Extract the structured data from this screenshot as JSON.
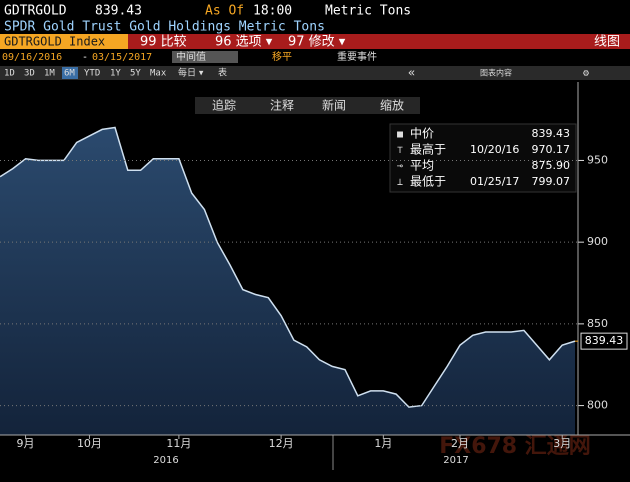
{
  "header": {
    "ticker": "GDTRGOLD",
    "price": "839.43",
    "as_of": "As Of",
    "time": "18:00",
    "unit": "Metric Tons",
    "description": "SPDR Gold Trust Gold Holdings Metric Tons",
    "security": "GDTRGOLD Index",
    "menu": [
      "99 比较",
      "96 选项 ▾",
      "97 修改 ▾"
    ],
    "chart_kind": "线图",
    "start_date": "09/16/2016",
    "date_sep": "-",
    "end_date": "03/15/2017",
    "mode": "中间值",
    "options": [
      "移平",
      "重要事件"
    ],
    "periods": [
      "1D",
      "3D",
      "1M",
      "6M",
      "YTD",
      "1Y",
      "5Y",
      "Max"
    ],
    "frequency": "每日 ▾",
    "table": "表",
    "collapse": "«",
    "chart_content": "图表内容",
    "tools": [
      "追踪",
      "注释",
      "新闻",
      "缩放"
    ],
    "watermark": "FX678 汇通网"
  },
  "chart_data": {
    "type": "area",
    "categories": [
      null,
      null,
      "9月",
      null,
      null,
      null,
      null,
      "10月",
      null,
      null,
      null,
      null,
      null,
      null,
      "11月",
      null,
      null,
      null,
      null,
      null,
      null,
      null,
      "12月",
      null,
      null,
      null,
      null,
      null,
      null,
      null,
      "1月",
      null,
      null,
      null,
      null,
      null,
      "2月",
      null,
      null,
      null,
      null,
      null,
      null,
      null,
      "3月",
      null
    ],
    "year_labels": [
      "2016",
      "2017"
    ],
    "series": [
      {
        "name": "GDTRGOLD",
        "color": "#cfe0f0",
        "values": [
          940,
          945,
          951,
          950,
          950,
          950,
          961,
          965,
          969,
          970.17,
          944,
          944,
          951,
          951,
          951,
          930,
          920,
          900,
          886,
          871,
          868,
          866,
          855,
          840,
          836,
          828,
          824,
          822,
          806,
          809,
          809,
          807,
          799.07,
          800,
          812,
          824,
          837,
          843,
          845,
          845,
          845,
          846,
          837,
          828,
          837,
          839.43
        ]
      }
    ],
    "ylim": [
      782,
      998
    ],
    "yticks": [
      800,
      850,
      900,
      950
    ],
    "grid": true,
    "legend": [
      {
        "label": "中价",
        "value": "839.43"
      },
      {
        "label": "最高于",
        "date": "10/20/16",
        "value": "970.17"
      },
      {
        "label": "平均",
        "value": "875.90"
      },
      {
        "label": "最低于",
        "date": "01/25/17",
        "value": "799.07"
      }
    ]
  }
}
